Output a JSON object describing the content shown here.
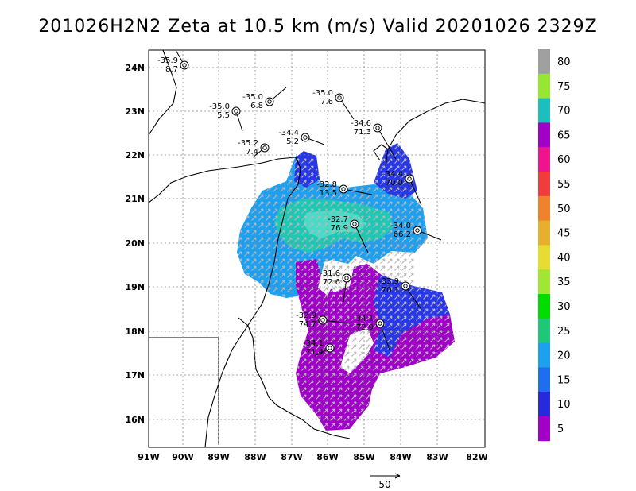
{
  "title": "201026H2N2 Zeta at 10.5 km (m/s) Valid 20201026 2329Z",
  "map": {
    "lon_ticks": [
      "91W",
      "90W",
      "89W",
      "88W",
      "87W",
      "86W",
      "85W",
      "84W",
      "83W",
      "82W"
    ],
    "lat_ticks": [
      "24N",
      "23N",
      "22N",
      "21N",
      "20N",
      "19N",
      "18N",
      "17N",
      "16N"
    ],
    "reference_vector": "50"
  },
  "colorbar": {
    "levels": [
      "80",
      "75",
      "70",
      "65",
      "60",
      "55",
      "50",
      "45",
      "40",
      "35",
      "30",
      "25",
      "20",
      "15",
      "10",
      "5"
    ],
    "colors": [
      "#a0a0a0",
      "#96e632",
      "#1ebebe",
      "#a000c8",
      "#f0148c",
      "#f03c3c",
      "#f0822d",
      "#e6af2d",
      "#e6dc32",
      "#a0e632",
      "#00dc00",
      "#1ec878",
      "#1ea0f0",
      "#1e6ef0",
      "#2828dc",
      "#a000c8"
    ]
  },
  "stations": [
    {
      "top": "-35.9",
      "bottom": "8.7"
    },
    {
      "top": "-35.0",
      "bottom": "6.8"
    },
    {
      "top": "-35.0",
      "bottom": "5.5"
    },
    {
      "top": "-35.0",
      "bottom": "7.6"
    },
    {
      "top": "-34.6",
      "bottom": "71.3"
    },
    {
      "top": "-34.4",
      "bottom": "5.2"
    },
    {
      "top": "-35.2",
      "bottom": "7.4"
    },
    {
      "top": "-34.4",
      "bottom": "70.0"
    },
    {
      "top": "-32.8",
      "bottom": "13.5"
    },
    {
      "top": "-32.7",
      "bottom": "76.9"
    },
    {
      "top": "-34.0",
      "bottom": "66.2"
    },
    {
      "top": "-31.6",
      "bottom": "72.6"
    },
    {
      "top": "-33.9",
      "bottom": "70.1"
    },
    {
      "top": "-32.9",
      "bottom": "74.7"
    },
    {
      "top": "-34.1",
      "bottom": "72.9"
    },
    {
      "top": "-34.1",
      "bottom": "71.4"
    }
  ]
}
